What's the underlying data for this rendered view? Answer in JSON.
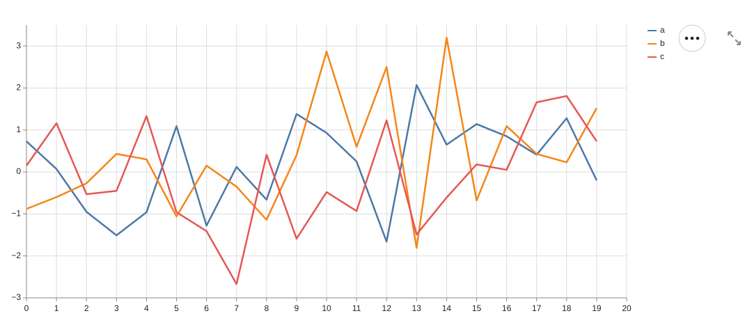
{
  "chart_data": {
    "type": "line",
    "x": [
      0,
      1,
      2,
      3,
      4,
      5,
      6,
      7,
      8,
      9,
      10,
      11,
      12,
      13,
      14,
      15,
      16,
      17,
      18,
      19
    ],
    "series": [
      {
        "name": "a",
        "color": "#4c78a8",
        "values": [
          0.73,
          0.07,
          -0.95,
          -1.51,
          -0.96,
          1.09,
          -1.28,
          0.12,
          -0.66,
          1.38,
          0.93,
          0.25,
          -1.66,
          2.07,
          0.65,
          1.14,
          0.85,
          0.41,
          1.28,
          -0.2
        ]
      },
      {
        "name": "b",
        "color": "#f58518",
        "values": [
          -0.88,
          -0.6,
          -0.27,
          0.43,
          0.3,
          -1.06,
          0.15,
          -0.35,
          -1.14,
          0.4,
          2.87,
          0.6,
          2.5,
          -1.81,
          3.2,
          -0.68,
          1.09,
          0.43,
          0.23,
          1.52
        ]
      },
      {
        "name": "c",
        "color": "#e45756",
        "values": [
          0.15,
          1.16,
          -0.53,
          -0.45,
          1.33,
          -0.96,
          -1.41,
          -2.67,
          0.41,
          -1.59,
          -0.48,
          -0.93,
          1.23,
          -1.49,
          -0.61,
          0.18,
          0.05,
          1.66,
          1.81,
          0.73
        ]
      }
    ],
    "xlim": [
      0,
      20
    ],
    "xticks": [
      0,
      1,
      2,
      3,
      4,
      5,
      6,
      7,
      8,
      9,
      10,
      11,
      12,
      13,
      14,
      15,
      16,
      17,
      18,
      19,
      20
    ],
    "ylim": [
      -3,
      3.5
    ],
    "yticks": [
      {
        "value": -3,
        "label": "−3"
      },
      {
        "value": -2,
        "label": "−2"
      },
      {
        "value": -1,
        "label": "−1"
      },
      0,
      1,
      2,
      3
    ],
    "grid": true,
    "legend": "top-right"
  }
}
